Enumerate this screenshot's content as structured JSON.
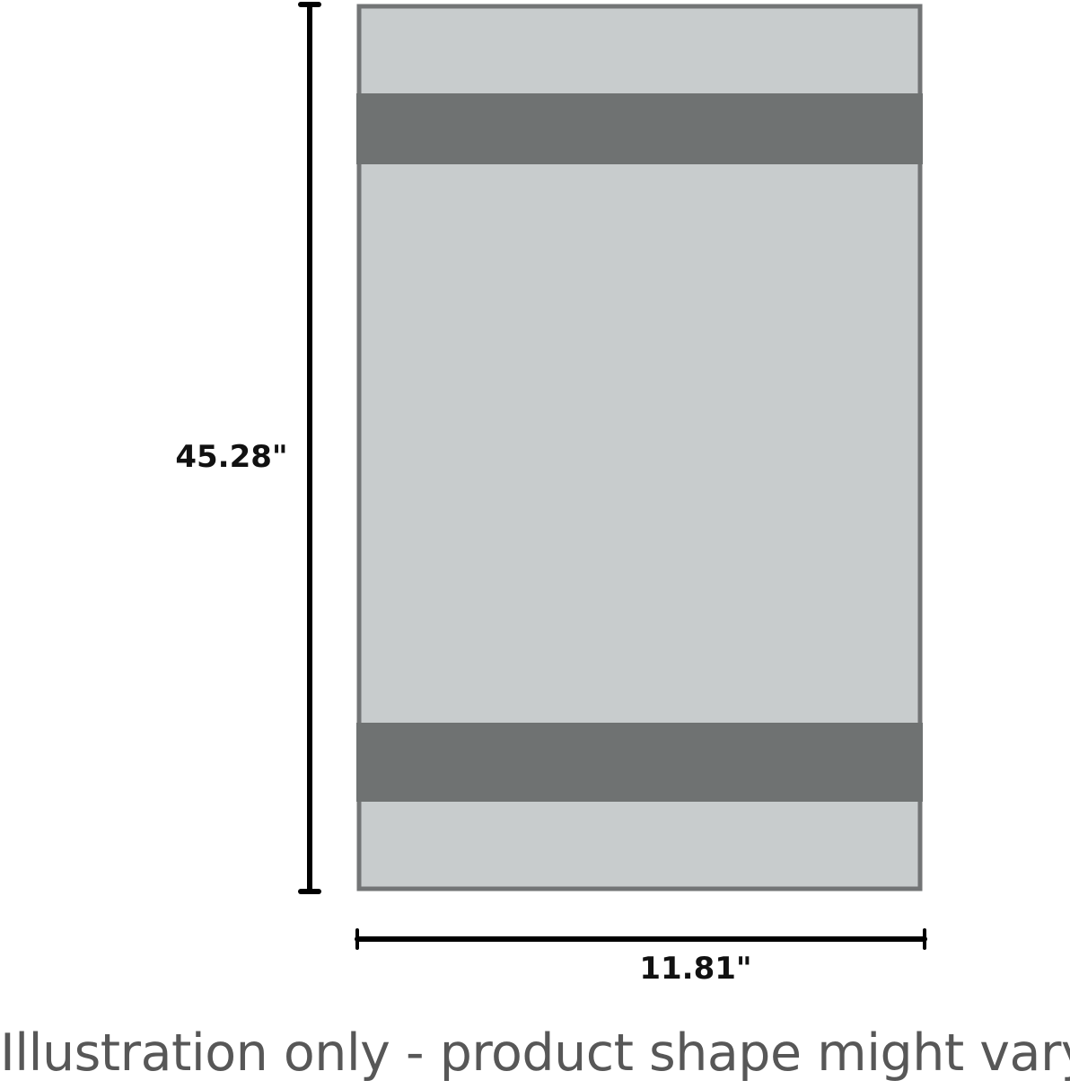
{
  "diagram": {
    "height_label": "45.28\"",
    "width_label": "11.81\"",
    "colors": {
      "panel_fill": "#c8cccd",
      "panel_border": "#737576",
      "band_fill": "#6f7272",
      "dimension_line": "#000000"
    }
  },
  "caption": "Illustration only - product shape might vary."
}
